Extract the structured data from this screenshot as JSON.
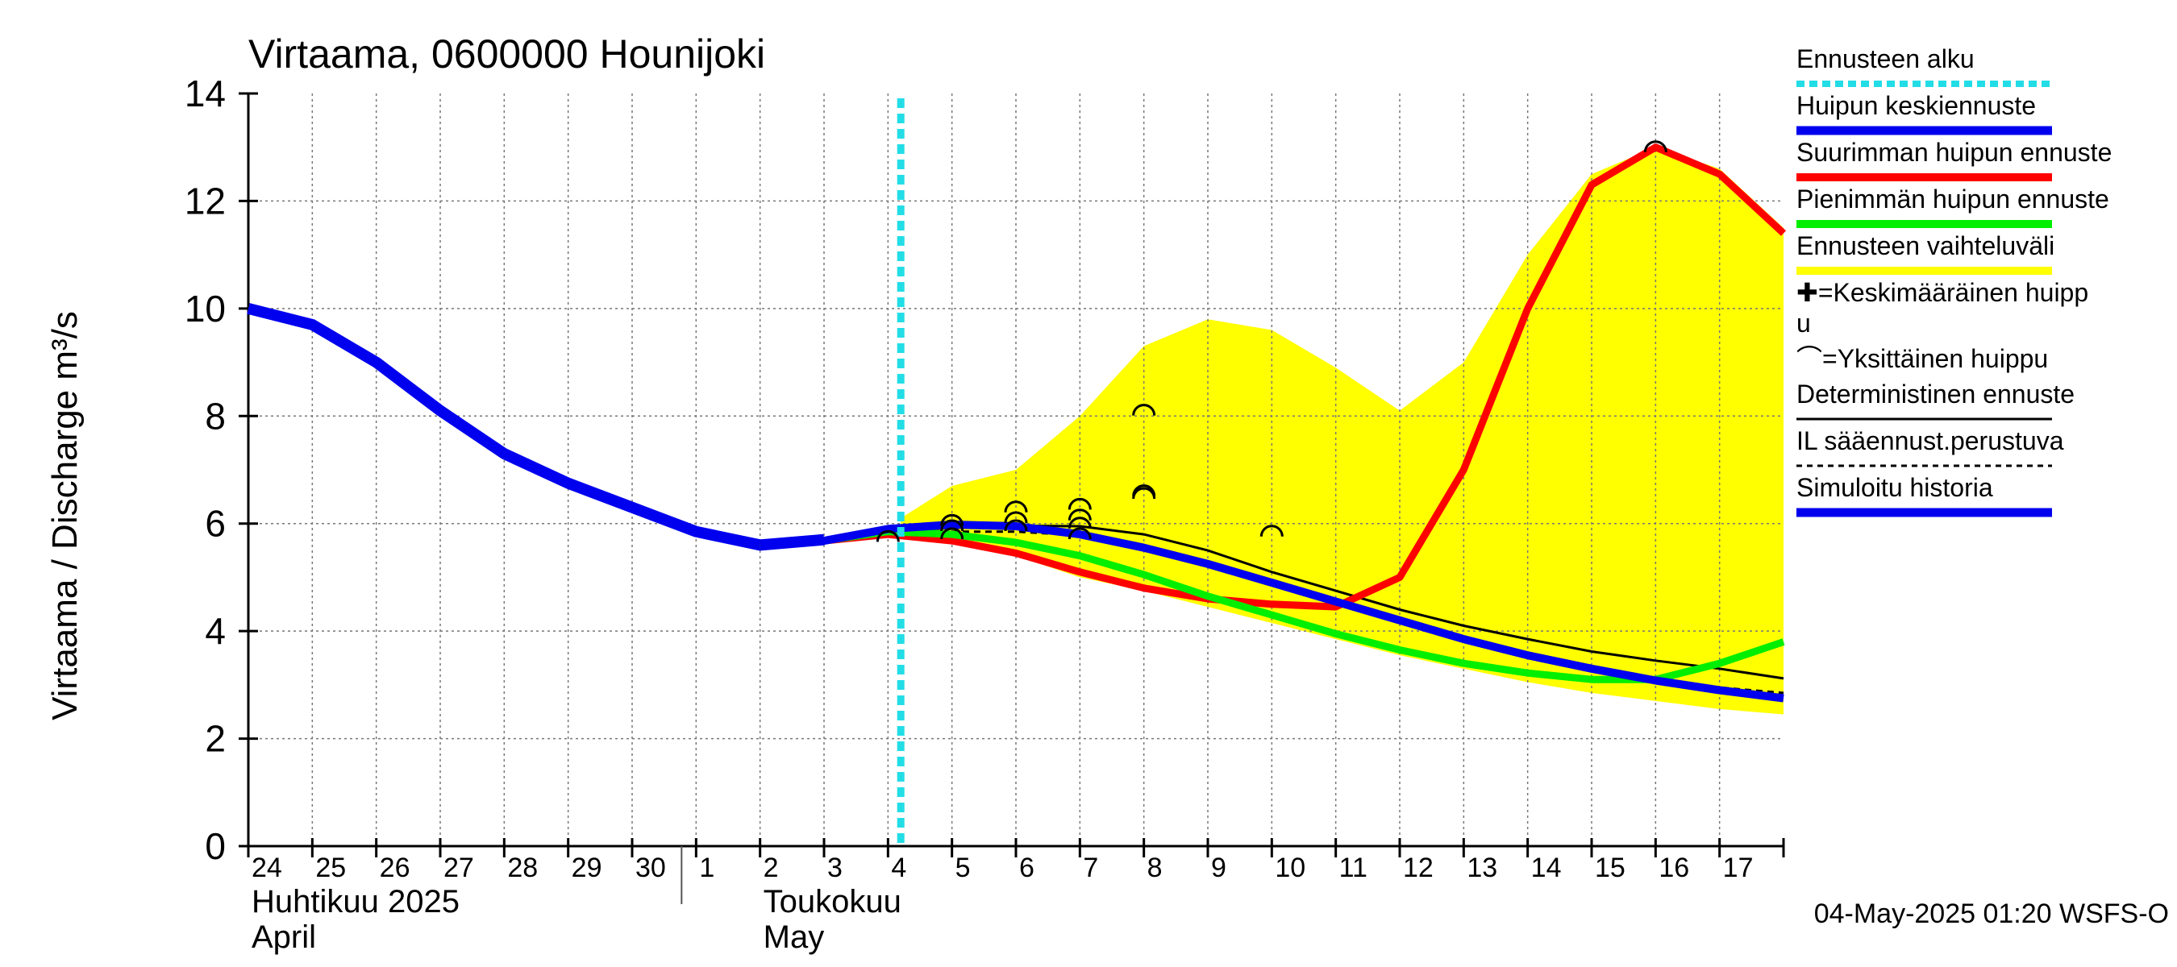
{
  "chart_data": {
    "type": "line",
    "title": "Virtaama, 0600000 Hounijoki",
    "ylabel": "Virtaama / Discharge    m³/s",
    "ylim": [
      0,
      14
    ],
    "yticks": [
      "0",
      "2",
      "4",
      "6",
      "8",
      "10",
      "12",
      "14"
    ],
    "xlim": [
      0,
      24
    ],
    "day_labels": [
      "24",
      "25",
      "26",
      "27",
      "28",
      "29",
      "30",
      "1",
      "2",
      "3",
      "4",
      "5",
      "6",
      "7",
      "8",
      "9",
      "10",
      "11",
      "12",
      "13",
      "14",
      "15",
      "16",
      "17"
    ],
    "month_labels": [
      {
        "x": 0,
        "fi": "Huhtikuu  2025",
        "en": "April"
      },
      {
        "x": 8,
        "fi": "Toukokuu",
        "en": "May"
      }
    ],
    "month_boundary_x": 7,
    "forecast_start_x": 10.2,
    "timestamp": "04-May-2025 01:20 WSFS-O",
    "colors": {
      "forecast_start": "#22dde6",
      "mean_peak": "#0000ee",
      "max_peak": "#ff0000",
      "min_peak": "#00ee00",
      "range": "#ffff00",
      "deterministic": "#000000",
      "il": "#000000",
      "history": "#0000ee"
    },
    "legend": [
      {
        "key": "forecast_start",
        "label": "Ennusteen alku",
        "style": "dotted-cyan"
      },
      {
        "key": "mean_peak",
        "label": "Huipun keskiennuste",
        "style": "thick-blue"
      },
      {
        "key": "max_peak",
        "label": "Suurimman huipun ennuste",
        "style": "thick-red"
      },
      {
        "key": "min_peak",
        "label": "Pienimmän huipun ennuste",
        "style": "thick-green"
      },
      {
        "key": "range",
        "label": "Ennusteen vaihteluväli",
        "style": "thick-yellow"
      },
      {
        "key": "avg_peak_marker",
        "label": "✚=Keskimääräinen huipp\nu",
        "style": "none"
      },
      {
        "key": "single_peak_marker",
        "label": "⌒=Yksittäinen huippu",
        "style": "none"
      },
      {
        "key": "deterministic",
        "label": "Deterministinen ennuste",
        "style": "thin-black"
      },
      {
        "key": "il",
        "label": "IL sääennust.perustuva",
        "style": "dashed-black"
      },
      {
        "key": "history",
        "label": "Simuloitu historia",
        "style": "thick-blue"
      }
    ],
    "series": {
      "history": {
        "x": [
          0,
          1,
          2,
          3,
          4,
          5,
          6,
          7,
          8,
          9
        ],
        "y": [
          10.0,
          9.7,
          9.0,
          8.1,
          7.3,
          6.75,
          6.3,
          5.85,
          5.6,
          5.7
        ]
      },
      "range_upper": {
        "x": [
          10.2,
          11,
          12,
          13,
          14,
          15,
          16,
          17,
          18,
          19,
          20,
          21,
          22,
          23,
          24
        ],
        "y": [
          6.1,
          6.7,
          7.0,
          8.0,
          9.3,
          9.8,
          9.6,
          8.9,
          8.1,
          9.0,
          11.0,
          12.5,
          13.0,
          12.6,
          11.5
        ]
      },
      "range_lower": {
        "x": [
          10.2,
          11,
          12,
          13,
          14,
          15,
          16,
          17,
          18,
          19,
          20,
          21,
          22,
          23,
          24
        ],
        "y": [
          5.75,
          5.65,
          5.4,
          5.0,
          4.75,
          4.45,
          4.15,
          3.85,
          3.55,
          3.3,
          3.05,
          2.85,
          2.7,
          2.55,
          2.45
        ]
      },
      "max_peak": {
        "x": [
          8,
          9,
          10,
          11,
          12,
          13,
          14,
          15,
          16,
          17,
          18,
          19,
          20,
          21,
          22,
          23,
          24
        ],
        "y": [
          5.6,
          5.68,
          5.8,
          5.68,
          5.45,
          5.1,
          4.8,
          4.6,
          4.5,
          4.45,
          5.0,
          7.0,
          10.0,
          12.3,
          13.0,
          12.5,
          11.4
        ]
      },
      "min_peak": {
        "x": [
          8,
          9,
          10,
          11,
          12,
          13,
          14,
          15,
          16,
          17,
          18,
          19,
          20,
          21,
          22,
          23,
          24
        ],
        "y": [
          5.6,
          5.68,
          5.85,
          5.8,
          5.65,
          5.4,
          5.05,
          4.65,
          4.3,
          3.95,
          3.65,
          3.4,
          3.22,
          3.1,
          3.1,
          3.4,
          3.8
        ]
      },
      "mean_peak": {
        "x": [
          8,
          9,
          10,
          11,
          12,
          13,
          14,
          15,
          16,
          17,
          18,
          19,
          20,
          21,
          22,
          23,
          24
        ],
        "y": [
          5.6,
          5.68,
          5.9,
          5.98,
          5.95,
          5.8,
          5.55,
          5.25,
          4.9,
          4.55,
          4.2,
          3.85,
          3.55,
          3.3,
          3.08,
          2.9,
          2.75
        ]
      },
      "deterministic": {
        "x": [
          8,
          9,
          10,
          11,
          12,
          13,
          14,
          15,
          16,
          17,
          18,
          19,
          20,
          21,
          22,
          23,
          24
        ],
        "y": [
          5.6,
          5.68,
          5.85,
          5.92,
          5.96,
          5.95,
          5.8,
          5.5,
          5.1,
          4.75,
          4.4,
          4.1,
          3.85,
          3.62,
          3.45,
          3.3,
          3.12
        ]
      },
      "il": {
        "x": [
          8,
          9,
          10,
          11,
          12,
          13,
          14,
          15,
          16,
          17,
          18,
          19,
          20,
          21,
          22,
          23,
          24
        ],
        "y": [
          5.6,
          5.68,
          5.82,
          5.85,
          5.85,
          5.78,
          5.55,
          5.22,
          4.85,
          4.5,
          4.15,
          3.8,
          3.5,
          3.28,
          3.1,
          2.95,
          2.85
        ]
      }
    },
    "single_peaks": [
      {
        "x": 10.0,
        "y": 5.75
      },
      {
        "x": 11.0,
        "y": 5.8
      },
      {
        "x": 11.0,
        "y": 5.95
      },
      {
        "x": 11.0,
        "y": 6.05
      },
      {
        "x": 12.0,
        "y": 5.95
      },
      {
        "x": 12.0,
        "y": 6.1
      },
      {
        "x": 12.0,
        "y": 6.3
      },
      {
        "x": 13.0,
        "y": 5.8
      },
      {
        "x": 13.0,
        "y": 6.0
      },
      {
        "x": 13.0,
        "y": 6.15
      },
      {
        "x": 13.0,
        "y": 6.35
      },
      {
        "x": 14.0,
        "y": 6.55
      },
      {
        "x": 14.0,
        "y": 6.6
      },
      {
        "x": 14.0,
        "y": 8.1
      },
      {
        "x": 16.0,
        "y": 5.85
      },
      {
        "x": 22.0,
        "y": 13.0
      }
    ]
  }
}
